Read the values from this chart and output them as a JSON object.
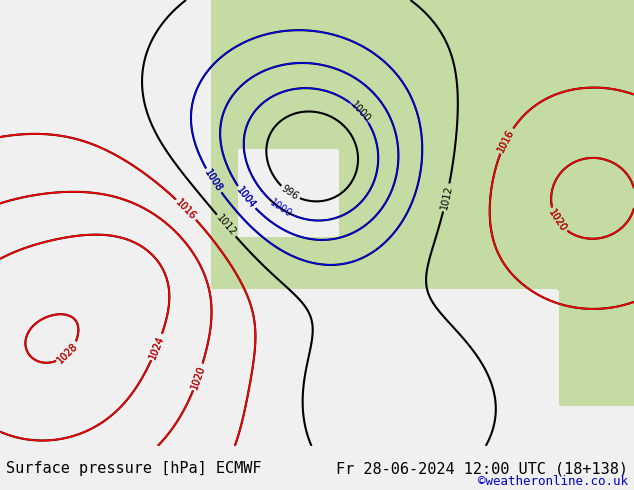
{
  "title_left": "Surface pressure [hPa] ECMWF",
  "title_right": "Fr 28-06-2024 12:00 UTC (18+138)",
  "copyright": "©weatheronline.co.uk",
  "bg_color": "#e8f4e8",
  "land_color": "#c8e6c8",
  "sea_color": "#ddeeff",
  "contour_interval": 4,
  "pressure_min": 996,
  "pressure_max": 1028,
  "font_size_title": 11,
  "font_size_copyright": 9
}
